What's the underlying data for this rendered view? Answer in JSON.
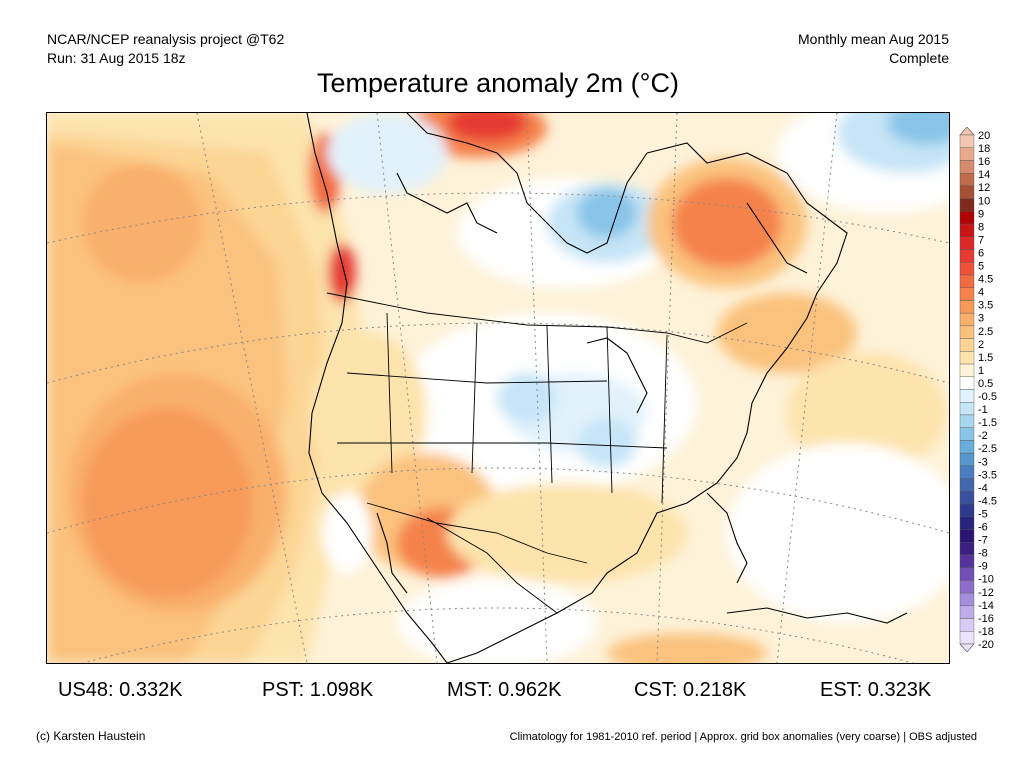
{
  "header": {
    "left_line1": "NCAR/NCEP reanalysis project @T62",
    "left_line2": "Run: 31 Aug 2015 18z",
    "right_line1": "Monthly mean Aug 2015",
    "right_line2": "Complete"
  },
  "title": "Temperature anomaly 2m (°C)",
  "legend": {
    "labels": [
      "20",
      "18",
      "16",
      "14",
      "12",
      "10",
      "9",
      "8",
      "7",
      "6",
      "5",
      "4.5",
      "4",
      "3.5",
      "3",
      "2.5",
      "2",
      "1.5",
      "1",
      "0.5",
      "-0.5",
      "-1",
      "-1.5",
      "-2",
      "-2.5",
      "-3",
      "-3.5",
      "-4",
      "-4.5",
      "-5",
      "-6",
      "-7",
      "-8",
      "-9",
      "-10",
      "-12",
      "-14",
      "-16",
      "-18",
      "-20"
    ],
    "colors": [
      "#f4c5b0",
      "#e8a98c",
      "#d68b6c",
      "#c06c4c",
      "#a85035",
      "#7e2a1c",
      "#b00000",
      "#c81414",
      "#dc2828",
      "#e63b32",
      "#ee5138",
      "#f26a42",
      "#f5824c",
      "#f79a5a",
      "#f9b06c",
      "#fbc27e",
      "#fcd494",
      "#fde3ac",
      "#fef2d8",
      "#ffffff",
      "#e2f2fc",
      "#c6e5f7",
      "#a8d7f0",
      "#88c5e8",
      "#6aafdc",
      "#5596cd",
      "#4a7ebe",
      "#4267ad",
      "#39509c",
      "#2f3a8c",
      "#27247c",
      "#2a1570",
      "#3c1d80",
      "#55339a",
      "#7050b4",
      "#8c6ec8",
      "#a68cdc",
      "#c0abea",
      "#d8cbf5",
      "#ebe2fb"
    ]
  },
  "stats": [
    {
      "label": "US48: 0.332K"
    },
    {
      "label": "PST: 1.098K"
    },
    {
      "label": "MST: 0.962K"
    },
    {
      "label": "CST: 0.218K"
    },
    {
      "label": "EST: 0.323K"
    }
  ],
  "footer": {
    "credit": "(c) Karsten Haustein",
    "notes": "Climatology for 1981-2010 ref. period | Approx. grid box anomalies (very coarse) | OBS adjusted"
  }
}
